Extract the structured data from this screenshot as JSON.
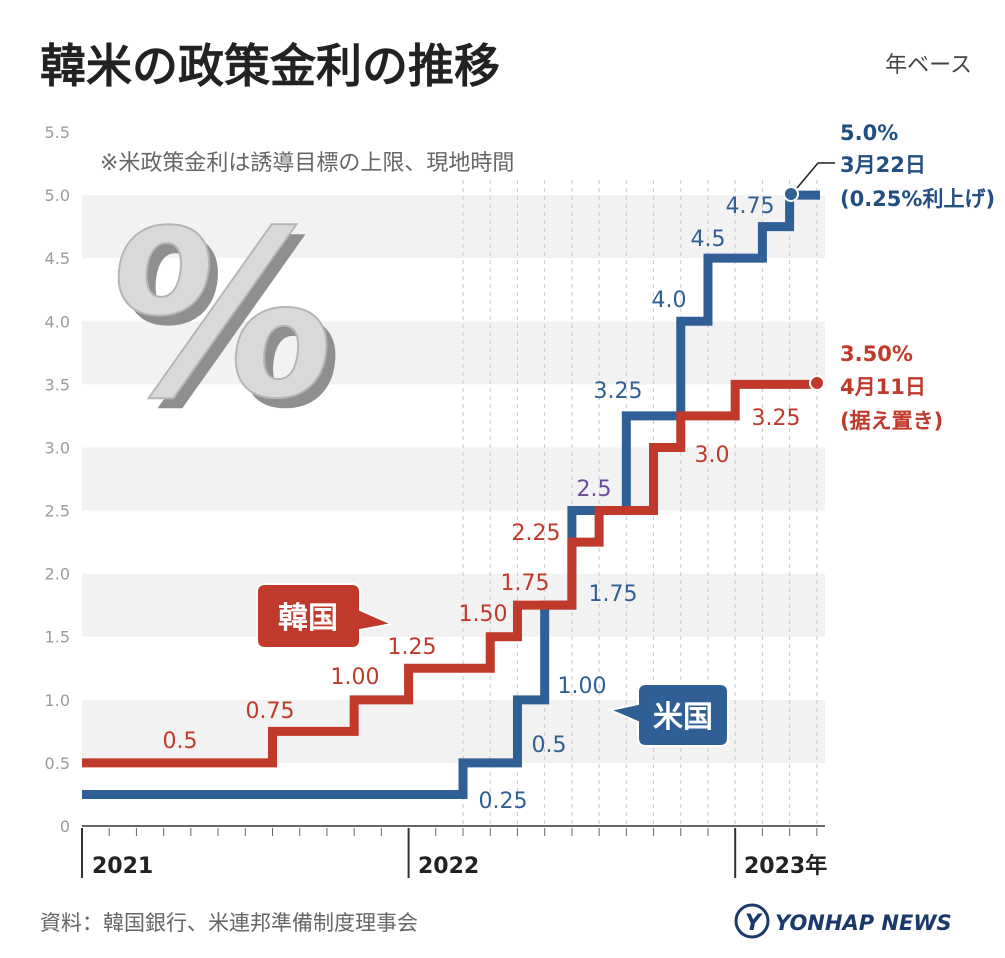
{
  "header": {
    "title": "韓米の政策金利の推移",
    "unit": "年ベース",
    "note": "※米政策金利は誘導目標の上限、現地時間"
  },
  "chart_data": {
    "type": "line",
    "step": true,
    "title": "韓米の政策金利の推移",
    "ylabel": "年ベース",
    "ylim": [
      0,
      5.5
    ],
    "yticks": [
      "0",
      "0.5",
      "1.0",
      "1.5",
      "2.0",
      "2.5",
      "3.0",
      "3.5",
      "4.0",
      "4.5",
      "5.0",
      "5.5"
    ],
    "x_range": [
      "2021-01",
      "2023-04"
    ],
    "year_labels": [
      "2021",
      "2022",
      "2023年"
    ],
    "series": [
      {
        "name": "韓国",
        "color": "#c0392b",
        "steps": [
          {
            "date": "2021-01",
            "value": 0.5
          },
          {
            "date": "2021-08",
            "value": 0.75
          },
          {
            "date": "2021-11",
            "value": 1.0
          },
          {
            "date": "2022-01",
            "value": 1.25
          },
          {
            "date": "2022-04",
            "value": 1.5
          },
          {
            "date": "2022-05",
            "value": 1.75
          },
          {
            "date": "2022-07",
            "value": 2.25
          },
          {
            "date": "2022-08",
            "value": 2.5
          },
          {
            "date": "2022-10",
            "value": 3.0
          },
          {
            "date": "2022-11",
            "value": 3.25
          },
          {
            "date": "2023-01",
            "value": 3.5
          }
        ],
        "labels": [
          "0.5",
          "0.75",
          "1.00",
          "1.25",
          "1.50",
          "1.75",
          "2.25",
          "2.5",
          "3.0",
          "3.25"
        ]
      },
      {
        "name": "米国",
        "color": "#2f5f94",
        "steps": [
          {
            "date": "2021-01",
            "value": 0.25
          },
          {
            "date": "2022-03",
            "value": 0.5
          },
          {
            "date": "2022-05",
            "value": 1.0
          },
          {
            "date": "2022-06",
            "value": 1.75
          },
          {
            "date": "2022-07",
            "value": 2.5
          },
          {
            "date": "2022-09",
            "value": 3.25
          },
          {
            "date": "2022-11",
            "value": 4.0
          },
          {
            "date": "2022-12",
            "value": 4.5
          },
          {
            "date": "2023-02",
            "value": 4.75
          },
          {
            "date": "2023-03",
            "value": 5.0
          }
        ],
        "labels": [
          "0.25",
          "0.5",
          "1.00",
          "1.75",
          "3.25",
          "4.0",
          "4.5",
          "4.75"
        ]
      }
    ]
  },
  "annotations": {
    "us": {
      "rate": "5.0%",
      "date": "3月22日",
      "detail": "(0.25%利上げ)"
    },
    "kr": {
      "rate": "3.50%",
      "date": "4月11日",
      "detail": "(据え置き)"
    }
  },
  "series_labels": {
    "kr": "韓国",
    "us": "米国"
  },
  "decoration": {
    "percent_symbol": "%"
  },
  "footer": {
    "source": "資料：韓国銀行、米連邦準備制度理事会",
    "logo": "YONHAP NEWS"
  }
}
